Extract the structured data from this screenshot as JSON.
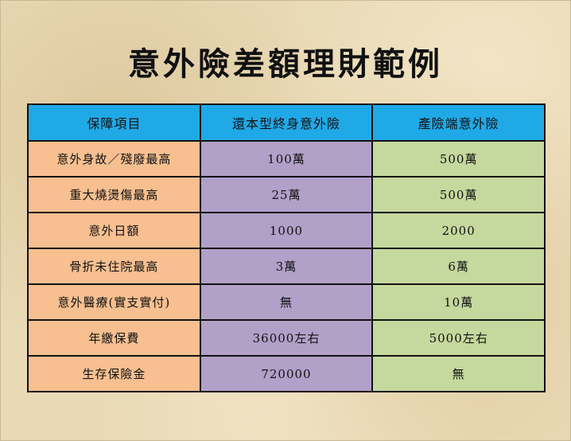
{
  "title": "意外險差額理財範例",
  "table": {
    "headers": [
      "保障項目",
      "還本型終身意外險",
      "產險端意外險"
    ],
    "rows": [
      [
        "意外身故／殘廢最高",
        "100萬",
        "500萬"
      ],
      [
        "重大燒燙傷最高",
        "25萬",
        "500萬"
      ],
      [
        "意外日額",
        "1000",
        "2000"
      ],
      [
        "骨折未住院最高",
        "3萬",
        "6萬"
      ],
      [
        "意外醫療(實支實付)",
        "無",
        "10萬"
      ],
      [
        "年繳保費",
        "36000左右",
        "5000左右"
      ],
      [
        "生存保險金",
        "720000",
        "無"
      ]
    ]
  },
  "colors": {
    "header": "#1fa9e6",
    "item_column": "#f8bf90",
    "return_type_column": "#b1a0c8",
    "property_column": "#c5d89d",
    "background": "#e9d9b4"
  }
}
